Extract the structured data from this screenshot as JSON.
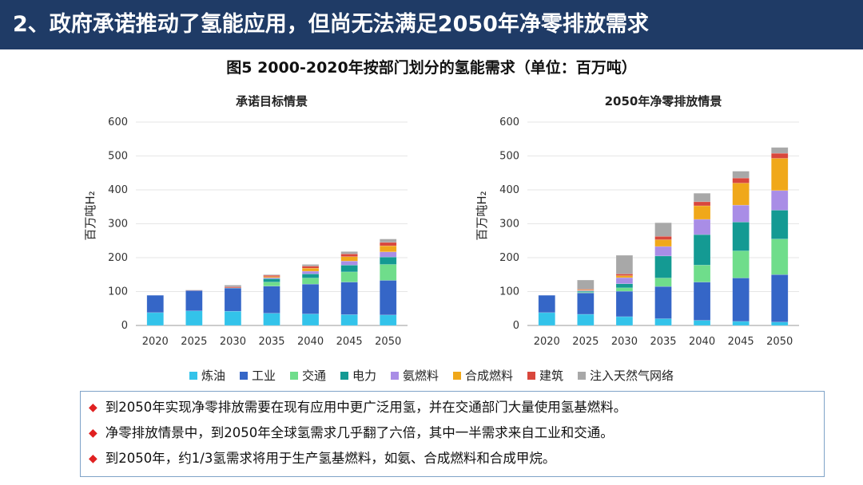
{
  "header": {
    "title": "2、政府承诺推动了氢能应用，但尚无法满足2050年净零排放需求"
  },
  "figure": {
    "title": "图5 2000-2020年按部门划分的氢能需求（单位：百万吨）"
  },
  "colors": {
    "炼油": "#33c3ea",
    "工业": "#3566c7",
    "交通": "#6fdd8b",
    "电力": "#149a93",
    "氨燃料": "#a98de6",
    "合成燃料": "#f0a81a",
    "建筑": "#d9473c",
    "注入天然气网络": "#a8a8a8"
  },
  "legend": [
    "炼油",
    "工业",
    "交通",
    "电力",
    "氨燃料",
    "合成燃料",
    "建筑",
    "注入天然气网络"
  ],
  "chart_data": [
    {
      "type": "bar",
      "stacked": true,
      "title": "承诺目标情景",
      "ylabel": "百万吨H₂",
      "ylim": [
        0,
        600
      ],
      "yticks": [
        0,
        100,
        200,
        300,
        400,
        500,
        600
      ],
      "categories": [
        "2020",
        "2025",
        "2030",
        "2035",
        "2040",
        "2045",
        "2050"
      ],
      "series": [
        {
          "name": "炼油",
          "values": [
            38,
            43,
            42,
            36,
            34,
            32,
            31
          ]
        },
        {
          "name": "工业",
          "values": [
            51,
            60,
            68,
            80,
            88,
            96,
            102
          ]
        },
        {
          "name": "交通",
          "values": [
            0,
            0,
            0,
            12,
            18,
            30,
            47
          ]
        },
        {
          "name": "电力",
          "values": [
            0,
            0,
            1,
            10,
            12,
            20,
            22
          ]
        },
        {
          "name": "氨燃料",
          "values": [
            0,
            0,
            0,
            3,
            8,
            12,
            15
          ]
        },
        {
          "name": "合成燃料",
          "values": [
            0,
            0,
            0,
            3,
            9,
            13,
            18
          ]
        },
        {
          "name": "建筑",
          "values": [
            0,
            1,
            3,
            4,
            6,
            8,
            10
          ]
        },
        {
          "name": "注入天然气网络",
          "values": [
            0,
            1,
            5,
            2,
            5,
            7,
            10
          ]
        }
      ]
    },
    {
      "type": "bar",
      "stacked": true,
      "title": "2050年净零排放情景",
      "ylabel": "百万吨H₂",
      "ylim": [
        0,
        600
      ],
      "yticks": [
        0,
        100,
        200,
        300,
        400,
        500,
        600
      ],
      "categories": [
        "2020",
        "2025",
        "2030",
        "2035",
        "2040",
        "2045",
        "2050"
      ],
      "series": [
        {
          "name": "炼油",
          "values": [
            38,
            33,
            26,
            20,
            15,
            12,
            10
          ]
        },
        {
          "name": "工业",
          "values": [
            51,
            63,
            75,
            95,
            113,
            128,
            140
          ]
        },
        {
          "name": "交通",
          "values": [
            0,
            2,
            10,
            25,
            50,
            80,
            105
          ]
        },
        {
          "name": "电力",
          "values": [
            0,
            3,
            12,
            65,
            90,
            85,
            85
          ]
        },
        {
          "name": "氨燃料",
          "values": [
            0,
            2,
            18,
            28,
            45,
            50,
            58
          ]
        },
        {
          "name": "合成燃料",
          "values": [
            0,
            2,
            6,
            20,
            40,
            65,
            95
          ]
        },
        {
          "name": "建筑",
          "values": [
            0,
            2,
            5,
            10,
            12,
            15,
            15
          ]
        },
        {
          "name": "注入天然气网络",
          "values": [
            0,
            27,
            55,
            40,
            25,
            20,
            17
          ]
        }
      ]
    }
  ],
  "notes": [
    "到2050年实现净零排放需要在现有应用中更广泛用氢，并在交通部门大量使用氢基燃料。",
    "净零排放情景中，到2050年全球氢需求几乎翻了六倍，其中一半需求来自工业和交通。",
    "到2050年，约1/3氢需求将用于生产氢基燃料，如氨、合成燃料和合成甲烷。"
  ]
}
